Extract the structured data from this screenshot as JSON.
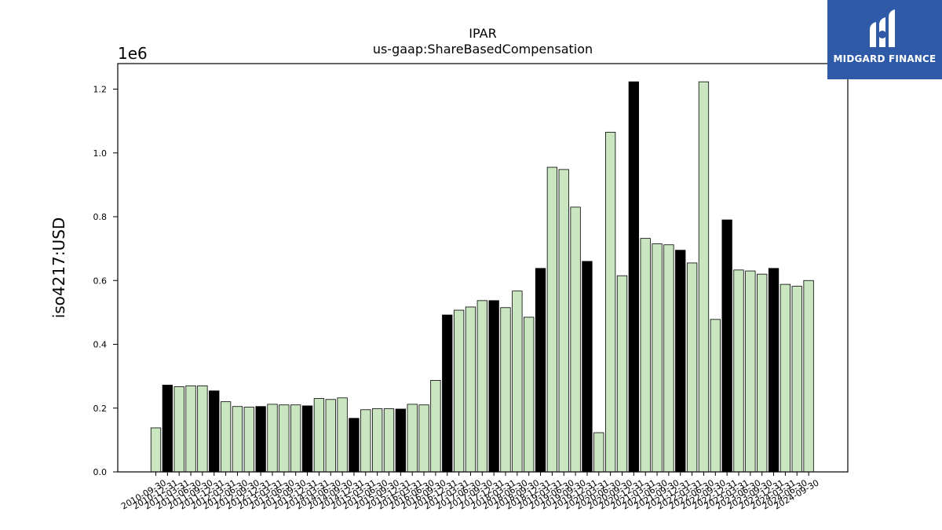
{
  "chart_data": {
    "type": "bar",
    "title": "IPAR",
    "subtitle": "us-gaap:ShareBasedCompensation",
    "ylabel": "iso4217:USD",
    "xlabel": "",
    "y_multiplier_label": "1e6",
    "ylim": [
      0,
      1.28
    ],
    "yticks": [
      "0.0",
      "0.2",
      "0.4",
      "0.6",
      "0.8",
      "1.0",
      "1.2"
    ],
    "grid": false,
    "colors": {
      "highlight": "#000000",
      "normal": "#c9e6c0",
      "edge": "#000000"
    },
    "x": [
      "2010-09-30",
      "2010-12-31",
      "2011-03-31",
      "2011-06-30",
      "2011-09-30",
      "2011-12-31",
      "2012-03-31",
      "2012-06-30",
      "2012-09-30",
      "2012-12-31",
      "2013-03-31",
      "2013-06-30",
      "2013-09-30",
      "2013-12-31",
      "2014-03-31",
      "2014-06-30",
      "2014-09-30",
      "2014-12-31",
      "2015-03-31",
      "2015-06-30",
      "2015-09-30",
      "2015-12-31",
      "2016-03-31",
      "2016-06-30",
      "2016-09-30",
      "2016-12-31",
      "2017-03-31",
      "2017-06-30",
      "2017-09-30",
      "2017-12-31",
      "2018-03-31",
      "2018-06-30",
      "2018-09-30",
      "2018-12-31",
      "2019-03-31",
      "2019-06-30",
      "2019-09-30",
      "2019-12-31",
      "2020-03-31",
      "2020-06-30",
      "2020-09-30",
      "2020-12-31",
      "2021-03-31",
      "2021-06-30",
      "2021-09-30",
      "2021-12-31",
      "2022-03-31",
      "2022-06-30",
      "2022-09-30",
      "2022-12-31",
      "2023-03-31",
      "2023-06-30",
      "2023-09-30",
      "2023-12-31",
      "2024-03-31",
      "2024-06-30",
      "2024-09-30"
    ],
    "values": [
      0.138,
      0.272,
      0.267,
      0.27,
      0.27,
      0.254,
      0.22,
      0.205,
      0.203,
      0.205,
      0.212,
      0.21,
      0.21,
      0.207,
      0.23,
      0.227,
      0.232,
      0.168,
      0.195,
      0.198,
      0.198,
      0.197,
      0.212,
      0.21,
      0.287,
      0.492,
      0.507,
      0.517,
      0.537,
      0.537,
      0.515,
      0.567,
      0.485,
      0.638,
      0.955,
      0.948,
      0.83,
      0.66,
      0.123,
      1.065,
      0.615,
      1.223,
      0.732,
      0.715,
      0.712,
      0.695,
      0.655,
      1.223,
      0.478,
      0.79,
      0.633,
      0.63,
      0.62,
      0.638,
      0.588,
      0.582,
      0.6
    ],
    "highlight": [
      false,
      true,
      false,
      false,
      false,
      true,
      false,
      false,
      false,
      true,
      false,
      false,
      false,
      true,
      false,
      false,
      false,
      true,
      false,
      false,
      false,
      true,
      false,
      false,
      false,
      true,
      false,
      false,
      false,
      true,
      false,
      false,
      false,
      true,
      false,
      false,
      false,
      true,
      false,
      false,
      false,
      true,
      false,
      false,
      false,
      true,
      false,
      false,
      false,
      true,
      false,
      false,
      false,
      true,
      false,
      false,
      false
    ]
  },
  "logo": {
    "text": "MIDGARD FINANCE",
    "icon": "midgard-logo-icon"
  }
}
